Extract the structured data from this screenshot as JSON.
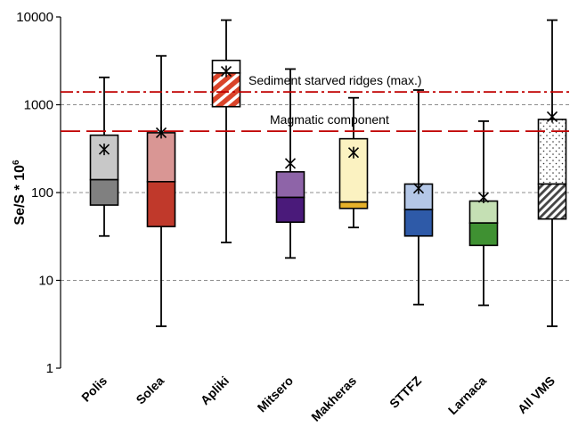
{
  "chart_data": {
    "type": "box",
    "yscale": "log",
    "ylim": [
      1,
      10000
    ],
    "ylabel": "Se/S * 10",
    "ylabel_superscript": "6",
    "ytick_labels": [
      "1",
      "10",
      "100",
      "1000",
      "10000"
    ],
    "yticks": [
      1,
      10,
      100,
      1000,
      10000
    ],
    "grid_lines": [
      10,
      100,
      1000
    ],
    "categories": [
      "Polis",
      "Solea",
      "Apliki",
      "Mitsero",
      "Makheras",
      "STTFZ",
      "Larnaca",
      "All VMS"
    ],
    "boxes": [
      {
        "name": "Polis",
        "min": 32,
        "q1": 72,
        "median": 140,
        "q3": 450,
        "max": 2050,
        "mean": 310,
        "upper_color": "#c8c8c8",
        "lower_color": "#808080",
        "pattern": "none"
      },
      {
        "name": "Solea",
        "min": 3,
        "q1": 41,
        "median": 133,
        "q3": 480,
        "max": 3600,
        "mean": 480,
        "upper_color": "#d99694",
        "lower_color": "#c0392b",
        "pattern": "none"
      },
      {
        "name": "Apliki",
        "min": 27,
        "q1": 950,
        "median": 2300,
        "q3": 3200,
        "max": 9200,
        "mean": 2400,
        "upper_color": "#ffffff",
        "lower_color": "#d9442a",
        "pattern": "diagonal-stripes"
      },
      {
        "name": "Mitsero",
        "min": 18,
        "q1": 46,
        "median": 88,
        "q3": 172,
        "max": 2550,
        "mean": 215,
        "upper_color": "#8e64a8",
        "lower_color": "#4a1a7a",
        "pattern": "none"
      },
      {
        "name": "Makheras",
        "min": 40,
        "q1": 66,
        "median": 78,
        "q3": 410,
        "max": 1200,
        "mean": 285,
        "upper_color": "#fbf2c1",
        "lower_color": "#e6b12a",
        "pattern": "none"
      },
      {
        "name": "STTFZ",
        "min": 5.3,
        "q1": 32,
        "median": 64,
        "q3": 125,
        "max": 1470,
        "mean": 112,
        "upper_color": "#b4c7e7",
        "lower_color": "#2e5aa8",
        "pattern": "none"
      },
      {
        "name": "Larnaca",
        "min": 5.2,
        "q1": 25,
        "median": 45,
        "q3": 80,
        "max": 650,
        "mean": 88,
        "upper_color": "#c5e0b4",
        "lower_color": "#3f9132",
        "pattern": "none"
      },
      {
        "name": "All VMS",
        "min": 3,
        "q1": 50,
        "median": 125,
        "q3": 680,
        "max": 9200,
        "mean": 730,
        "upper_color": "#ffffff",
        "lower_color": "#555555",
        "pattern": "dots-upper-hatch-lower"
      }
    ],
    "reference_lines": [
      {
        "label": "Sediment starved ridges (max.)",
        "value": 1400,
        "color": "#c00000",
        "style": "dash-dot"
      },
      {
        "label": "Magmatic component",
        "value": 500,
        "color": "#c00000",
        "style": "dashed"
      }
    ],
    "mean_marker": "asterisk",
    "grid": "dashed-gray"
  }
}
